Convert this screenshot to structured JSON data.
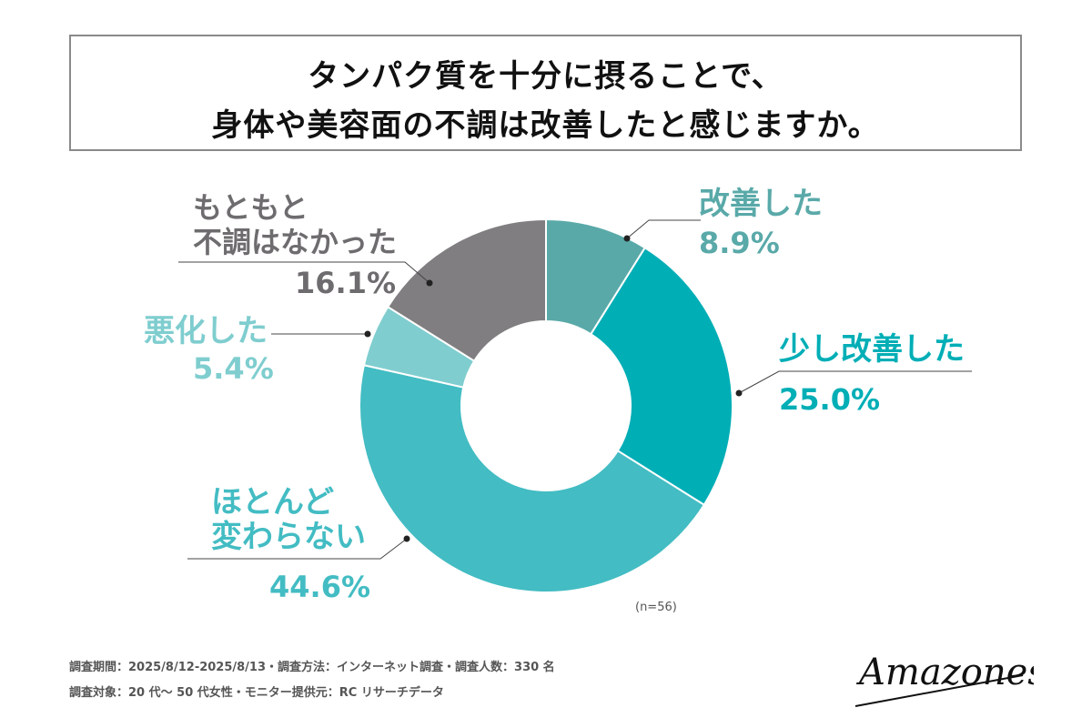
{
  "title": {
    "line1": "タンパク質を十分に摂ることで、",
    "line2": "身体や美容面の不調は改善したと感じますか。"
  },
  "chart_data": {
    "type": "pie",
    "categories": [
      "改善した",
      "少し改善した",
      "ほとんど変わらない",
      "悪化した",
      "もともと不調はなかった"
    ],
    "values": [
      8.9,
      25.0,
      44.6,
      5.4,
      16.1
    ],
    "value_labels": [
      "8.9%",
      "25.0%",
      "44.6%",
      "5.4%",
      "16.1%"
    ],
    "colors": [
      "#5aa9a9",
      "#00aeb6",
      "#43bcc3",
      "#7fcdcf",
      "#807e80"
    ],
    "donut": true,
    "sample_size": "(n=56)"
  },
  "labels": {
    "improved": "改善した",
    "improved_pct": "8.9%",
    "slightly_improved": "少し改善した",
    "slightly_improved_pct": "25.0%",
    "no_change_line1": "ほとんど",
    "no_change_line2": "変わらない",
    "no_change_pct": "44.6%",
    "worsened": "悪化した",
    "worsened_pct": "5.4%",
    "no_issue_line1": "もともと",
    "no_issue_line2": "不調はなかった",
    "no_issue_pct": "16.1%"
  },
  "footer": {
    "line1": "調査期間：2025/8/12-2025/8/13・調査方法：インターネット調査・調査人数：330 名",
    "line2": "調査対象：20 代〜 50 代女性・モニター提供元：RC リサーチデータ"
  },
  "brand": "Amazones"
}
